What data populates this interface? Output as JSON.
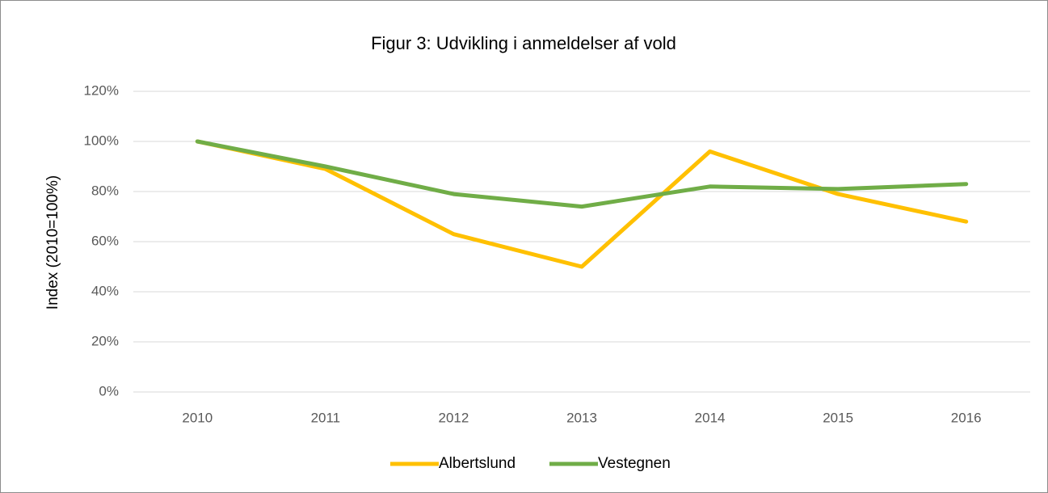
{
  "chart_data": {
    "type": "line",
    "title": "Figur 3: Udvikling i anmeldelser af vold",
    "y_label": "Index (2010=100%)",
    "categories": [
      "2010",
      "2011",
      "2012",
      "2013",
      "2014",
      "2015",
      "2016"
    ],
    "series": [
      {
        "name": "Albertslund",
        "color": "#FFC000",
        "values": [
          100,
          89,
          63,
          50,
          96,
          79,
          68
        ]
      },
      {
        "name": "Vestegnen",
        "color": "#70AD47",
        "values": [
          100,
          90,
          79,
          74,
          82,
          81,
          83
        ]
      }
    ],
    "ylim": [
      0,
      120
    ],
    "yticks": [
      {
        "value": 0,
        "label": "0%"
      },
      {
        "value": 20,
        "label": "20%"
      },
      {
        "value": 40,
        "label": "40%"
      },
      {
        "value": 60,
        "label": "60%"
      },
      {
        "value": 80,
        "label": "80%"
      },
      {
        "value": 100,
        "label": "100%"
      },
      {
        "value": 120,
        "label": "120%"
      }
    ],
    "grid": true,
    "legend": "bottom"
  }
}
